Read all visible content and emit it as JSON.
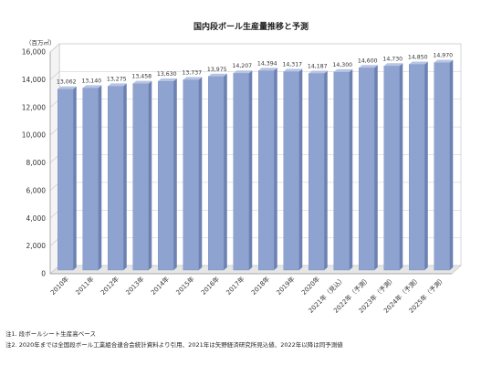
{
  "chart_data": {
    "type": "bar",
    "title": "国内段ボール生産量推移と予測",
    "unit_label": "（百万㎡）",
    "categories": [
      "2010年",
      "2011年",
      "2012年",
      "2013年",
      "2014年",
      "2015年",
      "2016年",
      "2017年",
      "2018年",
      "2019年",
      "2020年",
      "2021年（見込）",
      "2022年（予測）",
      "2023年（予測）",
      "2024年（予測）",
      "2025年（予測）"
    ],
    "values": [
      13062,
      13140,
      13275,
      13458,
      13630,
      13737,
      13975,
      14207,
      14394,
      14317,
      14187,
      14300,
      14600,
      14730,
      14850,
      14970
    ],
    "value_labels": [
      "13,062",
      "13,140",
      "13,275",
      "13,458",
      "13,630",
      "13,737",
      "13,975",
      "14,207",
      "14,394",
      "14,317",
      "14,187",
      "14,300",
      "14,600",
      "14,730",
      "14,850",
      "14,970"
    ],
    "y_ticks": [
      "0",
      "2,000",
      "4,000",
      "6,000",
      "8,000",
      "10,000",
      "12,000",
      "14,000",
      "16,000"
    ],
    "ylim": [
      0,
      16000
    ],
    "grid": true,
    "bar_color": "#8fa3d1",
    "notes": [
      "注1.  段ボールシート生産高ベース",
      "注2.  2020年までは全国段ボール工業組合連合会統計資料より引用、2021年は矢野経済研究所見込値、2022年以降は同予測値"
    ]
  }
}
